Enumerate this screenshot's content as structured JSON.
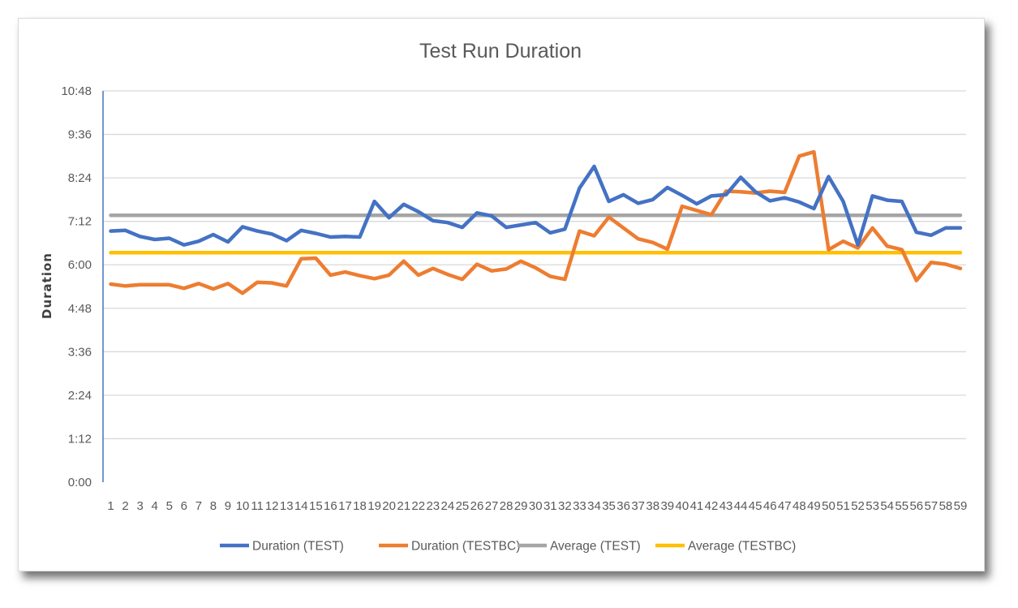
{
  "chart_data": {
    "type": "line",
    "title": "Test Run Duration",
    "xlabel": "",
    "ylabel": "Duration",
    "y_unit": "minutes (displayed as h:mm)",
    "ylim": [
      0,
      648
    ],
    "y_ticks": [
      "0:00",
      "1:12",
      "2:24",
      "3:36",
      "4:48",
      "6:00",
      "7:12",
      "8:24",
      "9:36",
      "10:48"
    ],
    "grid": true,
    "legend_position": "bottom",
    "categories": [
      1,
      2,
      3,
      4,
      5,
      6,
      7,
      8,
      9,
      10,
      11,
      12,
      13,
      14,
      15,
      16,
      17,
      18,
      19,
      20,
      21,
      22,
      23,
      24,
      25,
      26,
      27,
      28,
      29,
      30,
      31,
      32,
      33,
      34,
      35,
      36,
      37,
      38,
      39,
      40,
      41,
      42,
      43,
      44,
      45,
      46,
      47,
      48,
      49,
      50,
      51,
      52,
      53,
      54,
      55,
      56,
      57,
      58,
      59
    ],
    "series": [
      {
        "name": "Duration (TEST)",
        "color": "#4472C4",
        "values": [
          416,
          417,
          407,
          402,
          404,
          393,
          399,
          410,
          398,
          423,
          416,
          411,
          400,
          417,
          412,
          406,
          407,
          406,
          465,
          438,
          460,
          448,
          433,
          430,
          422,
          446,
          441,
          422,
          426,
          430,
          413,
          419,
          487,
          523,
          465,
          476,
          462,
          468,
          488,
          475,
          461,
          474,
          476,
          505,
          481,
          466,
          471,
          464,
          453,
          506,
          465,
          393,
          474,
          467,
          465,
          414,
          409,
          421,
          421
        ]
      },
      {
        "name": "Duration (TESTBC)",
        "color": "#ED7D31",
        "values": [
          328,
          325,
          327,
          327,
          327,
          321,
          329,
          320,
          329,
          313,
          331,
          330,
          325,
          370,
          371,
          343,
          348,
          342,
          337,
          343,
          366,
          343,
          354,
          344,
          336,
          361,
          350,
          353,
          366,
          355,
          341,
          336,
          416,
          408,
          439,
          421,
          403,
          397,
          386,
          457,
          450,
          443,
          482,
          481,
          479,
          482,
          480,
          540,
          547,
          385,
          399,
          388,
          421,
          391,
          385,
          334,
          364,
          361,
          354
        ]
      },
      {
        "name": "Average (TEST)",
        "color": "#A5A5A5",
        "values": [
          442,
          442,
          442,
          442,
          442,
          442,
          442,
          442,
          442,
          442,
          442,
          442,
          442,
          442,
          442,
          442,
          442,
          442,
          442,
          442,
          442,
          442,
          442,
          442,
          442,
          442,
          442,
          442,
          442,
          442,
          442,
          442,
          442,
          442,
          442,
          442,
          442,
          442,
          442,
          442,
          442,
          442,
          442,
          442,
          442,
          442,
          442,
          442,
          442,
          442,
          442,
          442,
          442,
          442,
          442,
          442,
          442,
          442,
          442
        ]
      },
      {
        "name": "Average (TESTBC)",
        "color": "#FFC000",
        "values": [
          380,
          380,
          380,
          380,
          380,
          380,
          380,
          380,
          380,
          380,
          380,
          380,
          380,
          380,
          380,
          380,
          380,
          380,
          380,
          380,
          380,
          380,
          380,
          380,
          380,
          380,
          380,
          380,
          380,
          380,
          380,
          380,
          380,
          380,
          380,
          380,
          380,
          380,
          380,
          380,
          380,
          380,
          380,
          380,
          380,
          380,
          380,
          380,
          380,
          380,
          380,
          380,
          380,
          380,
          380,
          380,
          380,
          380,
          380
        ]
      }
    ]
  }
}
